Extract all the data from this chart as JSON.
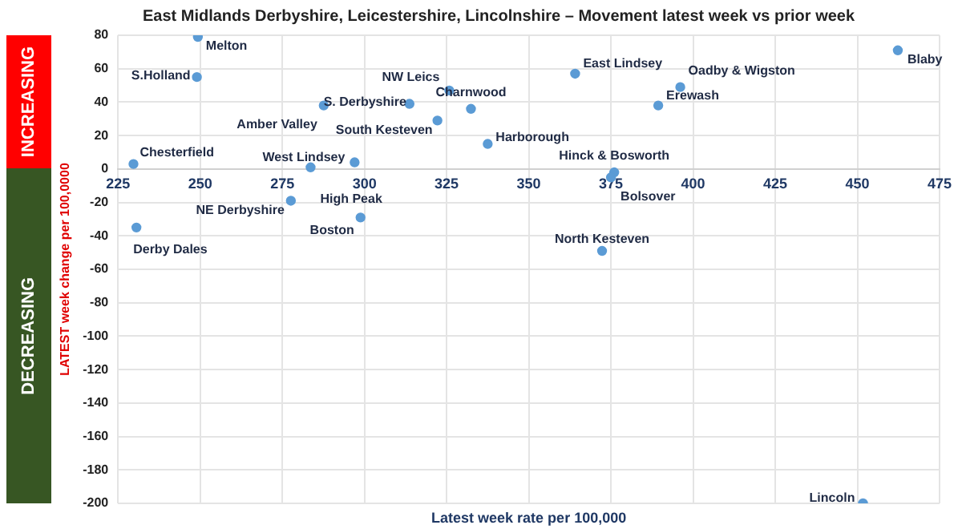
{
  "chart_data": {
    "type": "scatter",
    "title": "East Midlands Derbyshire, Leicestershire, Lincolnshire – Movement latest week vs prior week",
    "xlabel": "Latest week rate per 100,000",
    "ylabel": "LATEST week change per 100,0000",
    "xlim": [
      225,
      475
    ],
    "xticks": [
      225,
      250,
      275,
      300,
      325,
      350,
      375,
      400,
      425,
      450,
      475
    ],
    "ylim": [
      -200,
      80
    ],
    "yticks": [
      -200,
      -180,
      -160,
      -140,
      -120,
      -100,
      -80,
      -60,
      -40,
      -20,
      0,
      20,
      40,
      60,
      80
    ],
    "grid": true,
    "legend": false,
    "marker": "circle",
    "annotations": [
      "INCREASING",
      "DECREASING"
    ],
    "series": [
      {
        "color": "#5b9bd5",
        "x": [
          249.3,
          249,
          229.7,
          287.6,
          313.7,
          322.2,
          325.8,
          332.4,
          337.5,
          297,
          283.6,
          277.6,
          298.8,
          230.6,
          364.1,
          396.1,
          389.4,
          462.3,
          376,
          375,
          372.3,
          451.7
        ],
        "values": [
          79,
          55,
          3,
          38,
          39,
          29,
          47,
          36,
          15,
          4,
          1,
          -19,
          -29,
          -35,
          57,
          49,
          38,
          71,
          -2,
          -5,
          -49,
          -200
        ],
        "value_labels": [
          "Melton",
          "S.Holland",
          "Chesterfield",
          "Amber Valley",
          "S. Derbyshire",
          "South Kesteven",
          "NW Leics",
          "Charnwood",
          "Harborough",
          "West Lindsey",
          "High Peak",
          "NE Derbyshire",
          "Boston",
          "Derby Dales",
          "East Lindsey",
          "Oadby & Wigston",
          "Erewash",
          "Blaby",
          "Hinck & Bosworth",
          "Bolsover",
          "North Kesteven",
          "Lincoln"
        ]
      }
    ]
  }
}
